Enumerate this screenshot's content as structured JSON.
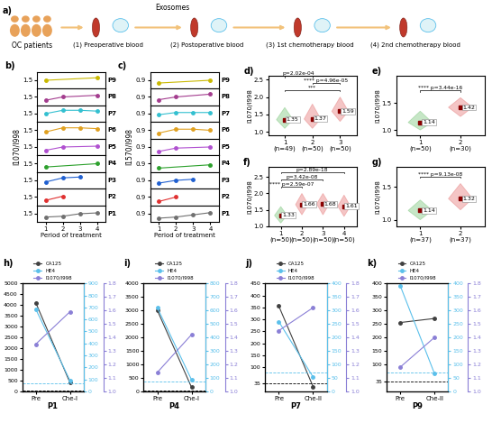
{
  "diagram": {
    "panel": "a)",
    "source": "OC patients",
    "carrier": "Exosomes",
    "steps": [
      "(1) Preoperative blood",
      "(2) Postoperative blood",
      "(3) 1st chemotherapy blood",
      "(4) 2nd chemotherapy blood"
    ]
  },
  "chart_data": [
    {
      "panel": "b)",
      "type": "strip",
      "x_label": "Period of treatment",
      "y_label": "I1070/I998",
      "x": [
        1,
        2,
        3,
        4
      ],
      "xlim": [
        0.5,
        4.5
      ],
      "xticks": [
        1,
        2,
        3,
        4
      ],
      "ylim": [
        1.0,
        2.0
      ],
      "yticks": [
        1.5
      ],
      "series": [
        {
          "name": "P9",
          "color": "#c9b800",
          "values": [
            1.5,
            null,
            null,
            1.65
          ]
        },
        {
          "name": "P8",
          "color": "#a33c8e",
          "values": [
            1.3,
            1.5,
            null,
            1.6
          ]
        },
        {
          "name": "P7",
          "color": "#33c0d0",
          "values": [
            1.5,
            1.7,
            1.7,
            1.65
          ]
        },
        {
          "name": "P6",
          "color": "#e0a020",
          "values": [
            1.4,
            1.65,
            1.65,
            1.6
          ]
        },
        {
          "name": "P5",
          "color": "#b050d0",
          "values": [
            1.3,
            1.5,
            null,
            1.55
          ]
        },
        {
          "name": "P4",
          "color": "#2ca02c",
          "values": [
            1.3,
            null,
            null,
            1.5
          ]
        },
        {
          "name": "P3",
          "color": "#1f5fd0",
          "values": [
            1.4,
            1.65,
            1.7,
            null
          ]
        },
        {
          "name": "P2",
          "color": "#e03030",
          "values": [
            1.3,
            1.55,
            null,
            null
          ]
        },
        {
          "name": "P1",
          "color": "#707070",
          "values": [
            1.3,
            1.35,
            1.5,
            1.55
          ]
        }
      ]
    },
    {
      "panel": "c)",
      "type": "strip",
      "x_label": "Period of treatment",
      "y_label": "I1570/I998",
      "x": [
        1,
        2,
        3,
        4
      ],
      "xlim": [
        0.5,
        4.5
      ],
      "xticks": [
        1,
        2,
        3,
        4
      ],
      "ylim": [
        0.75,
        1.05
      ],
      "yticks": [
        0.9
      ],
      "series": [
        {
          "name": "P9",
          "color": "#c9b800",
          "values": [
            0.85,
            null,
            null,
            0.9
          ]
        },
        {
          "name": "P8",
          "color": "#a33c8e",
          "values": [
            0.85,
            0.9,
            null,
            0.95
          ]
        },
        {
          "name": "P7",
          "color": "#33c0d0",
          "values": [
            0.88,
            0.92,
            0.92,
            0.92
          ]
        },
        {
          "name": "P6",
          "color": "#e0a020",
          "values": [
            0.85,
            0.92,
            0.92,
            0.9
          ]
        },
        {
          "name": "P5",
          "color": "#b050d0",
          "values": [
            0.82,
            0.88,
            null,
            0.9
          ]
        },
        {
          "name": "P4",
          "color": "#2ca02c",
          "values": [
            0.82,
            null,
            null,
            0.88
          ]
        },
        {
          "name": "P3",
          "color": "#1f5fd0",
          "values": [
            0.85,
            0.9,
            0.92,
            null
          ]
        },
        {
          "name": "P2",
          "color": "#e03030",
          "values": [
            0.82,
            0.9,
            null,
            null
          ]
        },
        {
          "name": "P1",
          "color": "#707070",
          "values": [
            0.82,
            0.84,
            0.88,
            0.92
          ]
        }
      ]
    },
    {
      "panel": "d)",
      "type": "violin",
      "y_label": "I1070/I998",
      "categories": [
        "1\n(n=49)",
        "2\n(n=50)",
        "3\n(n=50)"
      ],
      "means": [
        1.35,
        1.37,
        1.59
      ],
      "mins": [
        1.1,
        1.1,
        1.3
      ],
      "maxs": [
        1.7,
        1.8,
        2.0
      ],
      "colors": [
        "#5cb85c",
        "#e05a5a",
        "#e05a5a"
      ],
      "data_labels": true,
      "ylim": [
        0.9,
        2.6
      ],
      "yticks": [
        1.0,
        1.5,
        2.0,
        2.5
      ],
      "significance": [
        {
          "groups": [
            0,
            2
          ],
          "stars": "***"
        },
        {
          "groups": [
            1,
            2
          ],
          "stars": "****",
          "p": "p=4.96e-05"
        },
        {
          "groups": [
            0,
            1
          ],
          "p": "p=2.02e-04"
        }
      ]
    },
    {
      "panel": "e)",
      "type": "violin",
      "y_label": "I1070/I998",
      "categories": [
        "1\n(n=50)",
        "2\n(n=30)"
      ],
      "means": [
        1.14,
        1.42
      ],
      "mins": [
        1.0,
        1.25
      ],
      "maxs": [
        1.35,
        1.6
      ],
      "colors": [
        "#5cb85c",
        "#e05a5a"
      ],
      "data_labels": true,
      "ylim": [
        0.9,
        2.0
      ],
      "yticks": [
        1.0,
        1.5
      ],
      "significance": [
        {
          "groups": [
            0,
            1
          ],
          "stars": "****",
          "p": "p=3.44e-16"
        }
      ]
    },
    {
      "panel": "f)",
      "type": "violin",
      "y_label": "I1070/I998",
      "categories": [
        "1\n(n=50)",
        "2\n(n=50)",
        "3\n(n=50)",
        "4\n(n=50)"
      ],
      "means": [
        1.33,
        1.66,
        1.68,
        1.61
      ],
      "mins": [
        1.1,
        1.35,
        1.35,
        1.3
      ],
      "maxs": [
        1.6,
        2.0,
        2.0,
        1.95
      ],
      "colors": [
        "#5cb85c",
        "#e05a5a",
        "#e05a5a",
        "#e05a5a"
      ],
      "data_labels": true,
      "ylim": [
        1.0,
        2.8
      ],
      "yticks": [
        1.0,
        1.5,
        2.0,
        2.5
      ],
      "significance": [
        {
          "groups": [
            0,
            1
          ],
          "stars": "****",
          "p": "p=2.59e-07"
        },
        {
          "groups": [
            0,
            2
          ],
          "p": "p=3.42e-08"
        },
        {
          "groups": [
            0,
            3
          ],
          "p": "p=2.89e-18"
        }
      ]
    },
    {
      "panel": "g)",
      "type": "violin",
      "y_label": "I1070/I998",
      "categories": [
        "1\n(n=37)",
        "2\n(n=37)"
      ],
      "means": [
        1.14,
        1.32
      ],
      "mins": [
        1.0,
        1.15
      ],
      "maxs": [
        1.3,
        1.55
      ],
      "colors": [
        "#5cb85c",
        "#e05a5a"
      ],
      "data_labels": true,
      "ylim": [
        0.9,
        1.8
      ],
      "yticks": [
        1.0,
        1.5
      ],
      "significance": [
        {
          "groups": [
            0,
            1
          ],
          "stars": "****",
          "p": "p=9.13e-08"
        }
      ]
    },
    {
      "panel": "h)",
      "type": "line",
      "x_label": "P1",
      "categories": [
        "Pre",
        "Che-I"
      ],
      "legend": "lower center",
      "ylim": [
        0,
        5000
      ],
      "yticks": [
        0,
        500,
        1000,
        1500,
        2000,
        2500,
        3000,
        3500,
        4000,
        4500,
        5000
      ],
      "y2lim": [
        0,
        900
      ],
      "y2ticks": [
        0,
        100,
        200,
        300,
        400,
        500,
        600,
        700,
        800,
        900
      ],
      "y3lim": [
        1.0,
        1.8
      ],
      "y3ticks": [
        1.0,
        1.1,
        1.2,
        1.3,
        1.4,
        1.5,
        1.6,
        1.7,
        1.8
      ],
      "series": [
        {
          "name": "CA125",
          "color": "#404040",
          "axis": "y",
          "marker": "o",
          "values": [
            4100,
            400
          ]
        },
        {
          "name": "HE4",
          "color": "#5bc0eb",
          "axis": "y2",
          "marker": "o",
          "values": [
            684,
            90
          ]
        },
        {
          "name": "I1070/I998",
          "color": "#8a7fd6",
          "axis": "y3",
          "marker": "o",
          "values": [
            1.35,
            1.59
          ]
        }
      ],
      "reference_lines": [
        {
          "axis": "y",
          "value": 35,
          "color": "#000000"
        },
        {
          "axis": "y2",
          "value": 70,
          "color": "#5bc0eb"
        }
      ]
    },
    {
      "panel": "i)",
      "type": "line",
      "x_label": "P4",
      "categories": [
        "Pre",
        "Che-I"
      ],
      "legend": "lower center",
      "ylim": [
        0,
        4000
      ],
      "yticks": [
        0,
        500,
        1000,
        1500,
        2000,
        2500,
        3000,
        3500,
        4000
      ],
      "y2lim": [
        0,
        800
      ],
      "y2ticks": [
        0,
        100,
        200,
        300,
        400,
        500,
        600,
        700,
        800
      ],
      "y3lim": [
        1.0,
        1.8
      ],
      "y3ticks": [
        1.0,
        1.1,
        1.2,
        1.3,
        1.4,
        1.5,
        1.6,
        1.7,
        1.8
      ],
      "series": [
        {
          "name": "CA125",
          "color": "#404040",
          "axis": "y",
          "marker": "o",
          "values": [
            3000,
            150
          ]
        },
        {
          "name": "HE4",
          "color": "#5bc0eb",
          "axis": "y2",
          "marker": "o",
          "values": [
            620,
            86
          ]
        },
        {
          "name": "I1070/I998",
          "color": "#8a7fd6",
          "axis": "y3",
          "marker": "o",
          "values": [
            1.14,
            1.42
          ]
        }
      ],
      "reference_lines": [
        {
          "axis": "y",
          "value": 35,
          "color": "#000000"
        },
        {
          "axis": "y2",
          "value": 70,
          "color": "#5bc0eb"
        }
      ]
    },
    {
      "panel": "j)",
      "type": "line",
      "x_label": "P7",
      "categories": [
        "Pre",
        "Che-II"
      ],
      "legend": "lower center",
      "ylim": [
        0,
        450
      ],
      "yticks": [
        35,
        100,
        150,
        200,
        250,
        300,
        350,
        400,
        450
      ],
      "y2lim": [
        0,
        400
      ],
      "y2ticks": [
        0,
        50,
        100,
        150,
        200,
        250,
        300,
        350,
        400
      ],
      "y3lim": [
        1.0,
        1.8
      ],
      "y3ticks": [
        1.0,
        1.1,
        1.2,
        1.3,
        1.4,
        1.5,
        1.6,
        1.7,
        1.8
      ],
      "series": [
        {
          "name": "CA125",
          "color": "#404040",
          "axis": "y",
          "marker": "o",
          "values": [
            355,
            20
          ]
        },
        {
          "name": "HE4",
          "color": "#5bc0eb",
          "axis": "y2",
          "marker": "o",
          "values": [
            258,
            53
          ]
        },
        {
          "name": "I1070/I998",
          "color": "#8a7fd6",
          "axis": "y3",
          "marker": "o",
          "values": [
            1.45,
            1.62
          ]
        }
      ],
      "reference_lines": [
        {
          "axis": "y",
          "value": 35,
          "color": "#000000"
        },
        {
          "axis": "y2",
          "value": 71,
          "color": "#5bc0eb"
        }
      ]
    },
    {
      "panel": "k)",
      "type": "line",
      "x_label": "P9",
      "categories": [
        "Pre",
        "Che-II"
      ],
      "legend": "lower center",
      "ylim": [
        0,
        400
      ],
      "yticks": [
        35,
        100,
        150,
        200,
        250,
        300,
        350,
        400
      ],
      "y2lim": [
        0,
        400
      ],
      "y2ticks": [
        0,
        50,
        100,
        150,
        200,
        250,
        300,
        350,
        400
      ],
      "y3lim": [
        1.0,
        1.8
      ],
      "y3ticks": [
        1.0,
        1.1,
        1.2,
        1.3,
        1.4,
        1.5,
        1.6,
        1.7,
        1.8
      ],
      "series": [
        {
          "name": "CA125",
          "color": "#404040",
          "axis": "y",
          "marker": "o",
          "values": [
            255,
            270
          ]
        },
        {
          "name": "HE4",
          "color": "#5bc0eb",
          "axis": "y2",
          "marker": "o",
          "values": [
            390,
            65
          ]
        },
        {
          "name": "I1070/I998",
          "color": "#8a7fd6",
          "axis": "y3",
          "marker": "o",
          "values": [
            1.18,
            1.4
          ]
        }
      ],
      "reference_lines": [
        {
          "axis": "y",
          "value": 35,
          "color": "#000000"
        },
        {
          "axis": "y2",
          "value": 70,
          "color": "#5bc0eb"
        }
      ]
    }
  ]
}
